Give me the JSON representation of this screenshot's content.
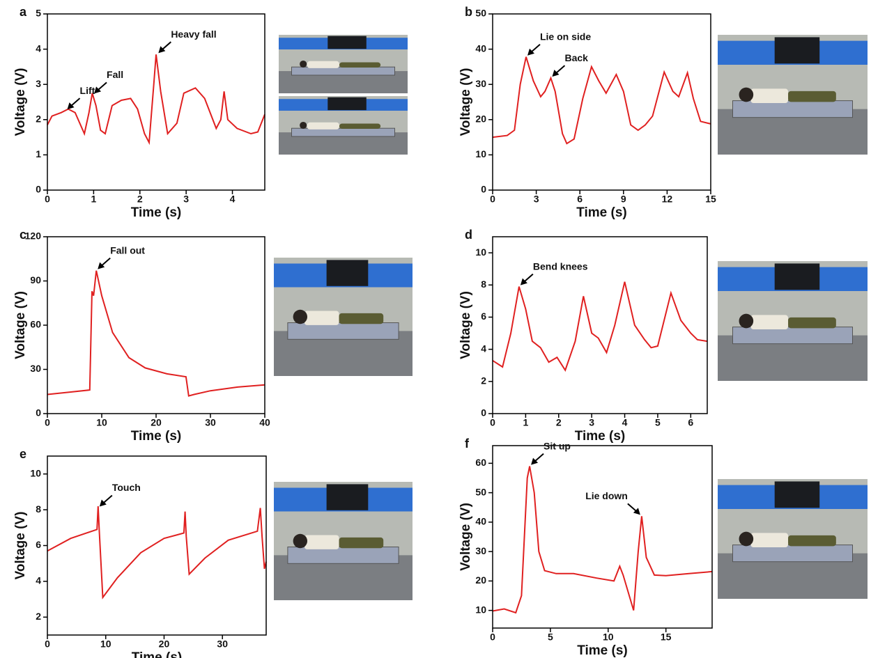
{
  "chart_data": [
    {
      "type": "line",
      "panel": "a",
      "xlabel": "Time (s)",
      "ylabel": "Voltage (V)",
      "color": "#e02020",
      "x": [
        0,
        0.1,
        0.3,
        0.45,
        0.6,
        0.8,
        0.9,
        0.97,
        1.05,
        1.15,
        1.25,
        1.4,
        1.6,
        1.8,
        1.95,
        2.1,
        2.2,
        2.3,
        2.35,
        2.45,
        2.6,
        2.8,
        2.95,
        3.2,
        3.4,
        3.65,
        3.75,
        3.82,
        3.9,
        4.1,
        4.4,
        4.55,
        4.7
      ],
      "values": [
        1.85,
        2.1,
        2.2,
        2.3,
        2.2,
        1.6,
        2.2,
        2.75,
        2.4,
        1.7,
        1.6,
        2.4,
        2.55,
        2.6,
        2.3,
        1.6,
        1.35,
        3.0,
        3.85,
        2.8,
        1.6,
        1.9,
        2.75,
        2.9,
        2.6,
        1.75,
        2.0,
        2.8,
        2.0,
        1.75,
        1.6,
        1.65,
        2.15
      ],
      "xlim": [
        0,
        4.7
      ],
      "ylim": [
        0,
        5
      ],
      "xticks": [
        0,
        1,
        2,
        3,
        4
      ],
      "yticks": [
        0,
        1,
        2,
        3,
        4,
        5
      ],
      "annotations": [
        {
          "text": "Lift",
          "x": 0.4,
          "y": 2.25
        },
        {
          "text": "Fall",
          "x": 0.98,
          "y": 2.7
        },
        {
          "text": "Heavy fall",
          "x": 2.37,
          "y": 3.85
        }
      ]
    },
    {
      "type": "line",
      "panel": "b",
      "xlabel": "Time (s)",
      "ylabel": "Voltage (V)",
      "color": "#e02020",
      "x": [
        0,
        1,
        1.5,
        1.9,
        2.3,
        2.8,
        3.3,
        3.6,
        4,
        4.3,
        4.8,
        5.1,
        5.6,
        6.2,
        6.8,
        7.3,
        7.8,
        8.5,
        9,
        9.5,
        10,
        10.5,
        11,
        11.8,
        12.4,
        12.8,
        13.4,
        13.8,
        14.3,
        15
      ],
      "values": [
        15,
        15.5,
        17,
        30,
        37.8,
        31,
        26.5,
        28,
        31.8,
        28,
        16,
        13.2,
        14.5,
        26,
        35,
        31,
        27.5,
        32.8,
        28,
        18.5,
        17,
        18.5,
        21,
        33.5,
        28,
        26.5,
        33.3,
        26,
        19.5,
        18.8
      ],
      "xlim": [
        0,
        15
      ],
      "ylim": [
        0,
        50
      ],
      "xticks": [
        0,
        3,
        6,
        9,
        12,
        15
      ],
      "yticks": [
        0,
        10,
        20,
        30,
        40,
        50
      ],
      "annotations": [
        {
          "text": "Lie on side",
          "x": 2.3,
          "y": 37.8
        },
        {
          "text": "Back",
          "x": 4,
          "y": 31.8
        }
      ]
    },
    {
      "type": "line",
      "panel": "c",
      "xlabel": "Time (s)",
      "ylabel": "Voltage (V)",
      "color": "#e02020",
      "x": [
        0,
        4,
        7.8,
        8.2,
        8.5,
        9,
        10,
        12,
        15,
        18,
        22,
        25.5,
        26,
        27,
        30,
        35,
        40
      ],
      "values": [
        13,
        14.5,
        16,
        83,
        80,
        97,
        80,
        55,
        38,
        31,
        27,
        25,
        12,
        13,
        15.5,
        18,
        19.5
      ],
      "xlim": [
        0,
        40
      ],
      "ylim": [
        0,
        120
      ],
      "xticks": [
        0,
        10,
        20,
        30,
        40
      ],
      "yticks": [
        0,
        30,
        60,
        90,
        120
      ],
      "annotations": [
        {
          "text": "Fall out",
          "x": 9,
          "y": 97
        }
      ]
    },
    {
      "type": "line",
      "panel": "d",
      "xlabel": "Time (s)",
      "ylabel": "Voltage (V)",
      "color": "#e02020",
      "x": [
        0,
        0.3,
        0.55,
        0.8,
        1.0,
        1.2,
        1.45,
        1.7,
        1.95,
        2.2,
        2.5,
        2.75,
        3.0,
        3.2,
        3.45,
        3.7,
        4.0,
        4.3,
        4.6,
        4.8,
        5.0,
        5.4,
        5.7,
        6.0,
        6.2,
        6.5
      ],
      "values": [
        3.3,
        2.9,
        5.0,
        7.9,
        6.5,
        4.5,
        4.1,
        3.2,
        3.5,
        2.7,
        4.5,
        7.3,
        5.0,
        4.7,
        3.8,
        5.5,
        8.2,
        5.5,
        4.6,
        4.1,
        4.2,
        7.5,
        5.8,
        5.0,
        4.6,
        4.5
      ],
      "xlim": [
        0,
        6.5
      ],
      "ylim": [
        0,
        11
      ],
      "xticks": [
        0,
        1,
        2,
        3,
        4,
        5,
        6
      ],
      "yticks": [
        0,
        2,
        4,
        6,
        8,
        10
      ],
      "annotations": [
        {
          "text": "Bend knees",
          "x": 0.8,
          "y": 7.9
        }
      ]
    },
    {
      "type": "line",
      "panel": "e",
      "xlabel": "Time (s)",
      "ylabel": "Voltage (V)",
      "color": "#e02020",
      "x": [
        0,
        4,
        8.5,
        8.7,
        8.9,
        9.5,
        12,
        16,
        20,
        23.4,
        23.6,
        23.8,
        24.3,
        27,
        31,
        36,
        36.5,
        36.8,
        37.2,
        37.5
      ],
      "values": [
        5.7,
        6.4,
        6.9,
        8.2,
        6.8,
        3.1,
        4.2,
        5.6,
        6.4,
        6.7,
        7.9,
        6.5,
        4.4,
        5.3,
        6.3,
        6.8,
        8.1,
        6.5,
        4.7,
        5.1
      ],
      "xlim": [
        0,
        37.5
      ],
      "ylim": [
        1,
        11
      ],
      "xticks": [
        0,
        10,
        20,
        30
      ],
      "yticks": [
        2,
        4,
        6,
        8,
        10
      ],
      "annotations": [
        {
          "text": "Touch",
          "x": 8.7,
          "y": 8.1
        }
      ]
    },
    {
      "type": "line",
      "panel": "f",
      "xlabel": "Time (s)",
      "ylabel": "Voltage (V)",
      "color": "#e02020",
      "x": [
        0,
        1,
        2,
        2.5,
        3,
        3.2,
        3.6,
        4,
        4.5,
        5.5,
        7,
        9,
        10.5,
        11,
        11.3,
        12.2,
        12.6,
        12.9,
        13.3,
        14,
        15,
        17,
        19
      ],
      "values": [
        9.8,
        10.5,
        9.2,
        15,
        55,
        59,
        50,
        30,
        23.5,
        22.5,
        22.5,
        21,
        20,
        25,
        22,
        10,
        30,
        42,
        28,
        22,
        21.8,
        22.5,
        23.2
      ],
      "xlim": [
        0,
        19
      ],
      "ylim": [
        4,
        66
      ],
      "xticks": [
        0,
        5,
        10,
        15
      ],
      "yticks": [
        10,
        20,
        30,
        40,
        50,
        60
      ],
      "annotations": [
        {
          "text": "Sit up",
          "x": 3.2,
          "y": 59
        },
        {
          "text": "Lie down",
          "x": 12.9,
          "y": 42
        }
      ]
    }
  ]
}
